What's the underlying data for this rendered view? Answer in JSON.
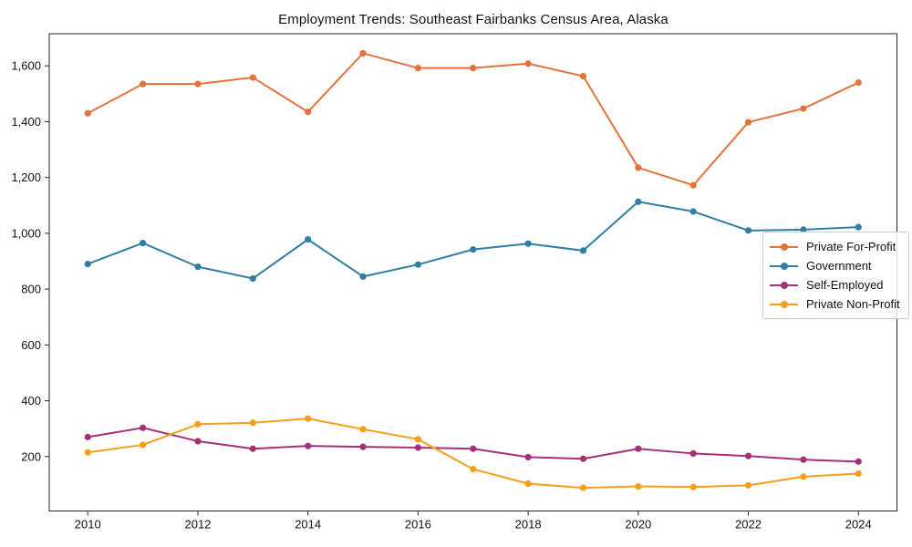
{
  "chart_data": {
    "type": "line",
    "title": "Employment Trends: Southeast Fairbanks Census Area, Alaska",
    "x": [
      2010,
      2011,
      2012,
      2013,
      2014,
      2015,
      2016,
      2017,
      2018,
      2019,
      2020,
      2021,
      2022,
      2023,
      2024
    ],
    "series": [
      {
        "name": "Private For-Profit",
        "color": "#e2733c",
        "values": [
          1430,
          1535,
          1535,
          1558,
          1435,
          1645,
          1592,
          1592,
          1608,
          1563,
          1235,
          1172,
          1398,
          1447,
          1540
        ]
      },
      {
        "name": "Government",
        "color": "#2f7fa5",
        "values": [
          890,
          965,
          880,
          838,
          978,
          845,
          888,
          942,
          963,
          938,
          1113,
          1078,
          1010,
          1013,
          1022
        ]
      },
      {
        "name": "Self-Employed",
        "color": "#a53077",
        "values": [
          270,
          303,
          255,
          228,
          238,
          235,
          232,
          228,
          198,
          192,
          228,
          211,
          202,
          189,
          182
        ]
      },
      {
        "name": "Private Non-Profit",
        "color": "#f59e1b",
        "values": [
          215,
          242,
          316,
          321,
          336,
          298,
          262,
          155,
          103,
          88,
          93,
          91,
          97,
          128,
          139
        ]
      }
    ],
    "x_tick_labels": [
      "2010",
      "2012",
      "2014",
      "2016",
      "2018",
      "2020",
      "2022",
      "2024"
    ],
    "x_tick_values": [
      2010,
      2012,
      2014,
      2016,
      2018,
      2020,
      2022,
      2024
    ],
    "y_tick_labels": [
      "200",
      "400",
      "600",
      "800",
      "1,000",
      "1,200",
      "1,400",
      "1,600"
    ],
    "y_tick_values": [
      200,
      400,
      600,
      800,
      1000,
      1200,
      1400,
      1600
    ],
    "xlim": [
      2009.3,
      2024.7
    ],
    "ylim": [
      5,
      1715
    ],
    "grid": false,
    "legend_position": "center-right",
    "frame_color": "#262626",
    "background": "#ffffff"
  }
}
